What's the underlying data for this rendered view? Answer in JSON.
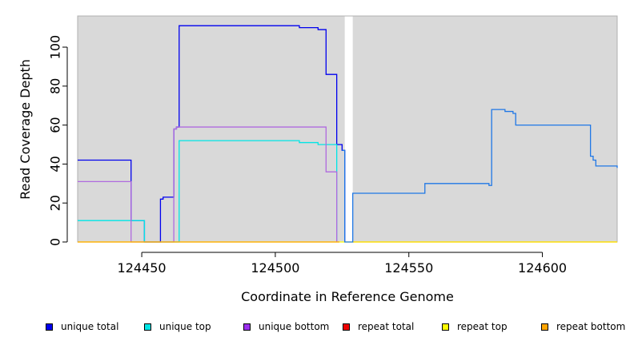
{
  "chart_data": {
    "type": "line",
    "title": "",
    "xlabel": "Coordinate in Reference Genome",
    "ylabel": "Read Coverage Depth",
    "xlim": [
      124426,
      124628
    ],
    "ylim": [
      0,
      116
    ],
    "xticks": [
      124450,
      124500,
      124550,
      124600
    ],
    "yticks": [
      0,
      20,
      40,
      60,
      80,
      100
    ],
    "grid": false,
    "background_color": "#d9d9d9",
    "gap_region": [
      124526,
      124529
    ],
    "legend_position": "bottom",
    "series": [
      {
        "name": "unique total",
        "color": "#0000ee",
        "style": "step",
        "x": [
          124426,
          124446,
          124447,
          124451,
          124457,
          124458,
          124461,
          124462,
          124463,
          124464,
          124485,
          124509,
          124516,
          124519,
          124523,
          124525,
          124526
        ],
        "y": [
          42,
          11,
          11,
          0,
          22,
          23,
          23,
          58,
          59,
          111,
          111,
          110,
          109,
          86,
          50,
          47,
          0
        ]
      },
      {
        "name": "unique top",
        "color": "#00e5e5",
        "style": "step",
        "x": [
          124426,
          124446,
          124451,
          124464,
          124509,
          124516,
          124523
        ],
        "y": [
          11,
          11,
          0,
          52,
          51,
          50,
          0
        ]
      },
      {
        "name": "unique bottom",
        "color": "#b06adf",
        "style": "step",
        "x": [
          124426,
          124446,
          124462,
          124463,
          124519,
          124523
        ],
        "y": [
          31,
          0,
          58,
          59,
          36,
          0
        ]
      },
      {
        "name": "repeat total",
        "color": "#ee0000",
        "style": "step",
        "x": [
          124529,
          124628
        ],
        "y": [
          0,
          0
        ]
      },
      {
        "name": "repeat top",
        "color": "#ffff00",
        "style": "step",
        "x": [
          124426,
          124628
        ],
        "y": [
          0,
          0
        ]
      },
      {
        "name": "repeat bottom",
        "color": "#ffa500",
        "style": "step",
        "x": [
          124426,
          124524
        ],
        "y": [
          0,
          0
        ]
      },
      {
        "name": "",
        "color": "#1f77e6",
        "style": "step",
        "x": [
          124525,
          124526,
          124529,
          124556,
          124580,
          124581,
          124586,
          124589,
          124590,
          124618,
          124619,
          124620,
          124628
        ],
        "y": [
          47,
          0,
          25,
          30,
          29,
          68,
          67,
          66,
          60,
          44,
          42,
          39,
          38
        ]
      }
    ],
    "legend": [
      {
        "label": "unique total",
        "color": "#0000ee"
      },
      {
        "label": "unique top",
        "color": "#00e5e5"
      },
      {
        "label": "unique bottom",
        "color": "#9b30ee"
      },
      {
        "label": "repeat total",
        "color": "#ee0000"
      },
      {
        "label": "repeat top",
        "color": "#ffff00"
      },
      {
        "label": "repeat bottom",
        "color": "#ffa500"
      }
    ]
  }
}
